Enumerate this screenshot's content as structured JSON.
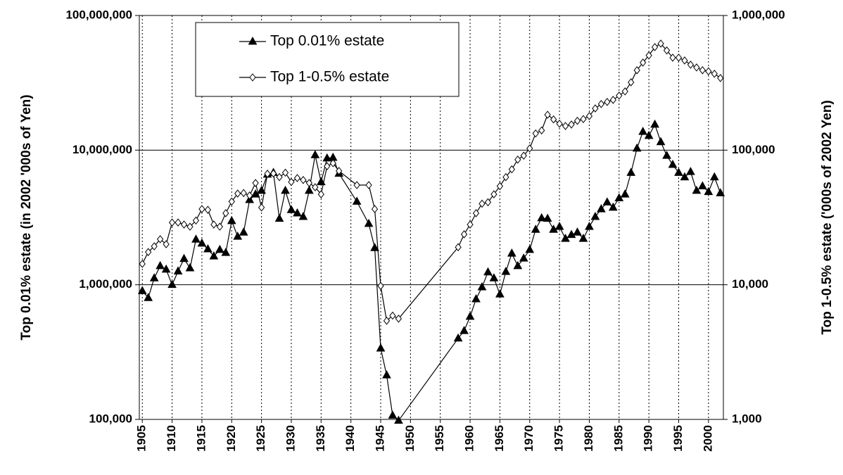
{
  "chart_data": {
    "type": "line",
    "y_label": "Top 0.01% estate (in 2002 '000s of Yen)",
    "y2_label": "Top 1-0.5% estate ('000s of 2002 Yen)",
    "x": [
      1905,
      1906,
      1907,
      1908,
      1909,
      1910,
      1911,
      1912,
      1913,
      1914,
      1915,
      1916,
      1917,
      1918,
      1919,
      1920,
      1921,
      1922,
      1923,
      1924,
      1925,
      1926,
      1927,
      1928,
      1929,
      1930,
      1931,
      1932,
      1933,
      1934,
      1935,
      1936,
      1937,
      1938,
      1941,
      1943,
      1944,
      1945,
      1946,
      1947,
      1948,
      1958,
      1959,
      1960,
      1961,
      1962,
      1963,
      1964,
      1965,
      1966,
      1967,
      1968,
      1969,
      1970,
      1971,
      1972,
      1973,
      1974,
      1975,
      1976,
      1977,
      1978,
      1979,
      1980,
      1981,
      1982,
      1983,
      1984,
      1985,
      1986,
      1987,
      1988,
      1989,
      1990,
      1991,
      1992,
      1993,
      1994,
      1995,
      1996,
      1997,
      1998,
      1999,
      2000,
      2001,
      2002
    ],
    "series": [
      {
        "name": "Top 0.01% estate",
        "color": "#000000",
        "marker": "triangle",
        "axis": "y",
        "values": [
          900000,
          800000,
          1120000,
          1380000,
          1300000,
          1000000,
          1260000,
          1560000,
          1330000,
          2170000,
          2030000,
          1840000,
          1630000,
          1820000,
          1730000,
          2980000,
          2280000,
          2450000,
          4270000,
          4700000,
          5000000,
          6600000,
          6800000,
          3100000,
          5000000,
          3600000,
          3400000,
          3200000,
          5000000,
          9200000,
          5800000,
          8700000,
          8800000,
          6700000,
          4150000,
          2840000,
          1880000,
          337000,
          213000,
          107000,
          98000,
          400000,
          455000,
          580000,
          783000,
          960000,
          1240000,
          1120000,
          850000,
          1250000,
          1710000,
          1380000,
          1570000,
          1820000,
          2570000,
          3130000,
          3100000,
          2570000,
          2700000,
          2200000,
          2350000,
          2450000,
          2200000,
          2700000,
          3200000,
          3650000,
          4100000,
          3750000,
          4400000,
          4700000,
          6800000,
          10300000,
          13700000,
          12800000,
          15500000,
          11500000,
          9100000,
          7800000,
          6800000,
          6300000,
          6900000,
          5000000,
          5400000,
          4900000,
          6300000,
          4800000
        ]
      },
      {
        "name": "Top 1-0.5% estate",
        "color": "#000000",
        "marker": "diamond",
        "axis": "y2",
        "values": [
          14300,
          17500,
          19300,
          21800,
          20000,
          29000,
          29000,
          28000,
          27000,
          30000,
          36500,
          36000,
          28000,
          27000,
          34000,
          41500,
          47600,
          48000,
          46000,
          57000,
          37500,
          66700,
          67000,
          63000,
          68000,
          58000,
          62000,
          60000,
          57000,
          53000,
          47000,
          76000,
          80000,
          70000,
          55000,
          55000,
          36500,
          9800,
          5400,
          5900,
          5600,
          19000,
          23700,
          28000,
          34000,
          40000,
          41000,
          47000,
          54000,
          63000,
          72000,
          85000,
          91000,
          103000,
          133000,
          140000,
          183000,
          169000,
          157000,
          151000,
          155000,
          165000,
          170000,
          179000,
          204000,
          220000,
          228000,
          236000,
          254000,
          273000,
          319000,
          392000,
          447000,
          505000,
          582000,
          618000,
          550000,
          486000,
          486000,
          463000,
          431000,
          411000,
          392000,
          385000,
          369000,
          343000
        ]
      }
    ],
    "xlim": [
      1904.5,
      2002.5
    ],
    "xticks": [
      1905,
      1910,
      1915,
      1920,
      1925,
      1930,
      1935,
      1940,
      1945,
      1950,
      1955,
      1960,
      1965,
      1970,
      1975,
      1980,
      1985,
      1990,
      1995,
      2000
    ],
    "ylim": [
      100000,
      100000000
    ],
    "yticks": [
      {
        "value": 100000,
        "label": "100,000"
      },
      {
        "value": 1000000,
        "label": "1,000,000"
      },
      {
        "value": 10000000,
        "label": "10,000,000"
      },
      {
        "value": 100000000,
        "label": "100,000,000"
      }
    ],
    "y2lim": [
      1000,
      1000000
    ],
    "y2ticks": [
      {
        "value": 1000,
        "label": "1,000"
      },
      {
        "value": 10000,
        "label": "10,000"
      },
      {
        "value": 100000,
        "label": "100,000"
      },
      {
        "value": 1000000,
        "label": "1,000,000"
      }
    ],
    "log_scale": true,
    "grid": true,
    "legend_position": "upper-left"
  }
}
